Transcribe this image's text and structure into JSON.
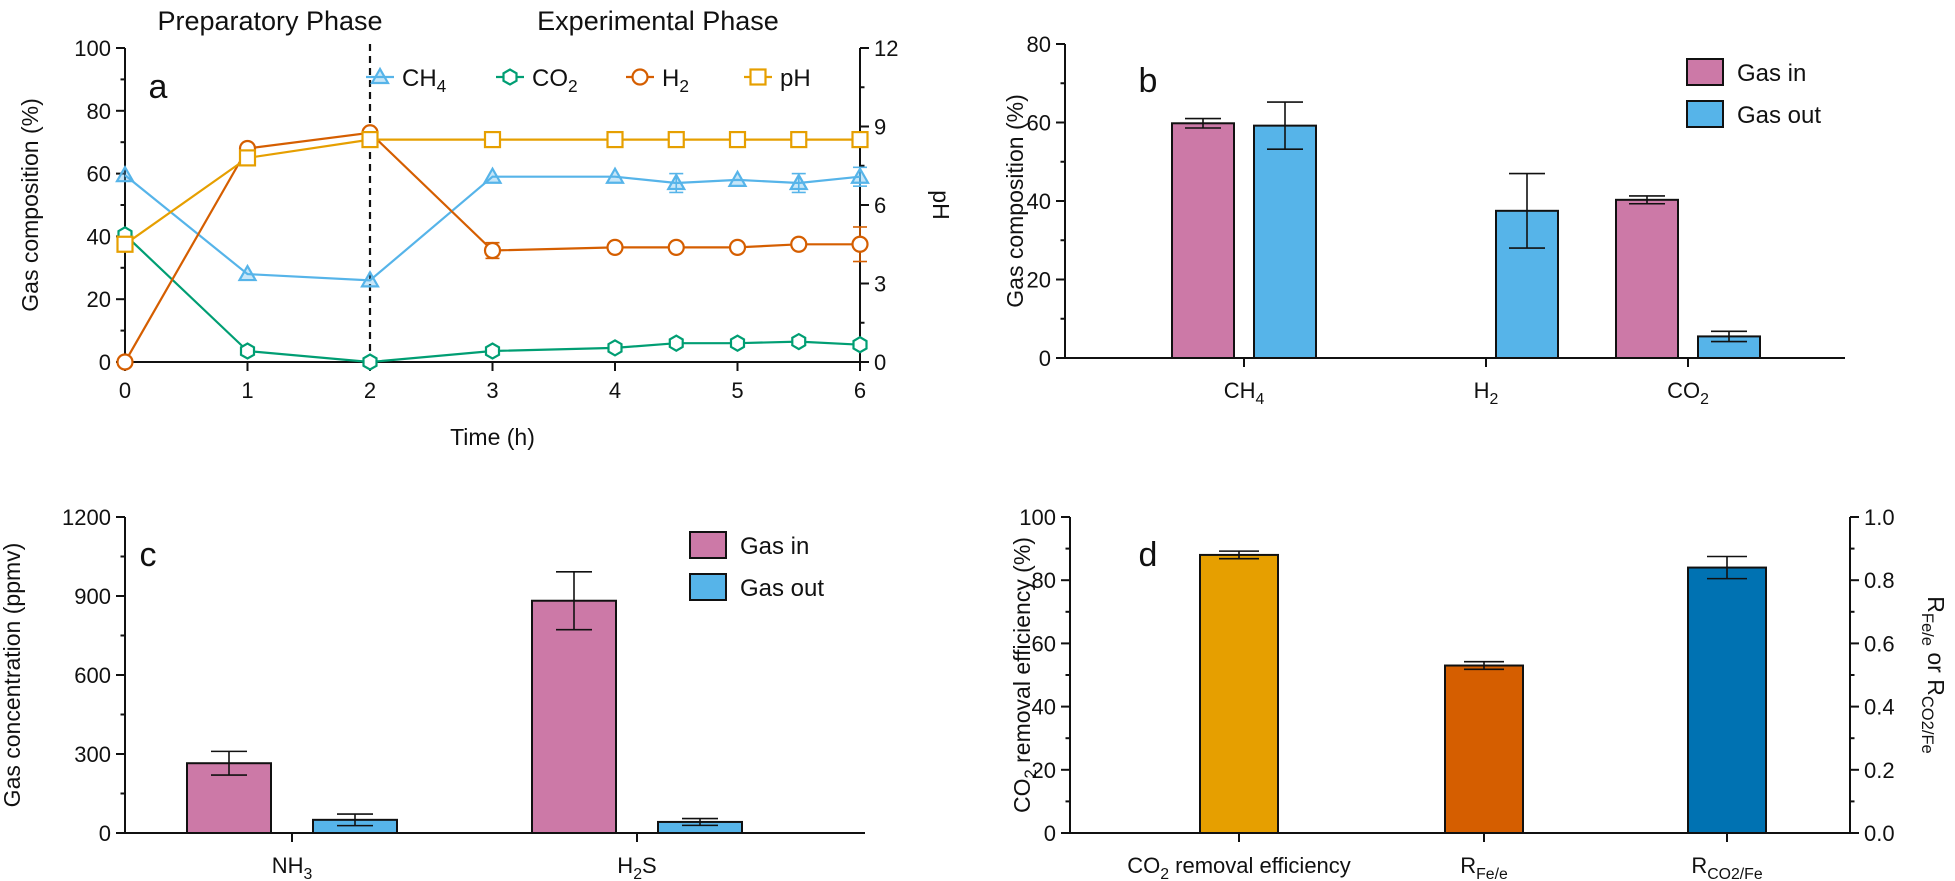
{
  "colors": {
    "ch4": "#56b4e9",
    "co2": "#009e73",
    "h2": "#d55e00",
    "ph": "#e69f00",
    "gas_in": "#cc79a7",
    "gas_out": "#56b4e9",
    "d_bar_1": "#e69f00",
    "d_bar_2": "#d55e00",
    "d_bar_3": "#0072b2",
    "dashed_divider": "#111111"
  },
  "chart_data": [
    {
      "panel": "a",
      "type": "line",
      "phase_labels": [
        "Preparatory Phase",
        "Experimental Phase"
      ],
      "phase_divider_x": 2,
      "xlabel": "Time (h)",
      "ylabel": "Gas composition (%)",
      "y2label": "pH",
      "xlim": [
        0,
        6
      ],
      "ylim": [
        0,
        100
      ],
      "y2lim": [
        0,
        12
      ],
      "x_ticks": [
        "0",
        "1",
        "2",
        "3",
        "4",
        "5",
        "6"
      ],
      "y_ticks": [
        "0",
        "20",
        "40",
        "60",
        "80",
        "100"
      ],
      "y2_ticks": [
        "0",
        "3",
        "6",
        "9",
        "12"
      ],
      "legend_placement": "top-right, horizontal",
      "series": [
        {
          "name": "CH",
          "sub": "4",
          "marker": "triangle",
          "axis": "left",
          "x": [
            0,
            1,
            2,
            3,
            4,
            4.5,
            5,
            5.5,
            6
          ],
          "y": [
            59.5,
            28,
            26,
            59,
            59,
            57,
            58,
            57,
            59
          ],
          "err": [
            0,
            0,
            0,
            0,
            0,
            3,
            0,
            3,
            3
          ]
        },
        {
          "name": "CO",
          "sub": "2",
          "marker": "hexagon",
          "axis": "left",
          "x": [
            0,
            1,
            2,
            3,
            4,
            4.5,
            5,
            5.5,
            6
          ],
          "y": [
            40.5,
            3.5,
            0,
            3.5,
            4.5,
            6,
            6,
            6.5,
            5.5
          ],
          "err": [
            0,
            0,
            0,
            0,
            0,
            0,
            0,
            0,
            0
          ]
        },
        {
          "name": "H",
          "sub": "2",
          "marker": "circle",
          "axis": "left",
          "x": [
            0,
            1,
            2,
            3,
            4,
            4.5,
            5,
            5.5,
            6
          ],
          "y": [
            0,
            68,
            73,
            35.5,
            36.5,
            36.5,
            36.5,
            37.5,
            37.5
          ],
          "err": [
            0,
            0,
            0,
            2.5,
            0,
            0,
            0,
            0,
            5.5
          ]
        },
        {
          "name": "pH",
          "sub": "",
          "marker": "square",
          "axis": "right",
          "x": [
            0,
            1,
            2,
            3,
            4,
            4.5,
            5,
            5.5,
            6
          ],
          "y": [
            4.5,
            7.8,
            8.5,
            8.5,
            8.5,
            8.5,
            8.5,
            8.5,
            8.5
          ],
          "err": [
            0,
            0,
            0,
            0,
            0,
            0,
            0,
            0,
            0
          ]
        }
      ]
    },
    {
      "panel": "b",
      "type": "bar",
      "ylabel": "Gas composition (%)",
      "ylim": [
        0,
        80
      ],
      "y_ticks": [
        "0",
        "20",
        "40",
        "60",
        "80"
      ],
      "categories": [
        {
          "main": "CH",
          "sub": "4"
        },
        {
          "main": "H",
          "sub": "2"
        },
        {
          "main": "CO",
          "sub": "2"
        }
      ],
      "legend_placement": "top-right",
      "series": [
        {
          "name": "Gas in",
          "values": [
            59.8,
            0,
            40.3
          ],
          "err": [
            1.2,
            0,
            1.0
          ]
        },
        {
          "name": "Gas out",
          "values": [
            59.2,
            37.5,
            5.5
          ],
          "err": [
            6,
            9.5,
            1.3
          ]
        }
      ]
    },
    {
      "panel": "c",
      "type": "bar",
      "ylabel": "Gas concentration (ppmv)",
      "ylim": [
        0,
        1200
      ],
      "y_ticks": [
        "0",
        "300",
        "600",
        "900",
        "1200"
      ],
      "categories": [
        {
          "main": "NH",
          "sub": "3",
          "tail": ""
        },
        {
          "main": "H",
          "sub": "2",
          "tail": "S"
        }
      ],
      "legend_placement": "top-right",
      "series": [
        {
          "name": "Gas in",
          "values": [
            265,
            882
          ],
          "err": [
            45,
            110
          ]
        },
        {
          "name": "Gas out",
          "values": [
            50,
            42
          ],
          "err": [
            22,
            13
          ]
        }
      ]
    },
    {
      "panel": "d",
      "type": "bar",
      "ylabel_main": "CO",
      "ylabel_sub": "2",
      "ylabel_tail": " removal efficiency (%)",
      "y2label_parts": [
        {
          "text": "R",
          "sub": false
        },
        {
          "text": "Fe/e",
          "sub": true
        },
        {
          "text": " or R",
          "sub": false
        },
        {
          "text": "CO2/Fe",
          "sub": true
        }
      ],
      "ylim": [
        0,
        100
      ],
      "y2lim": [
        0,
        1.0
      ],
      "y_ticks": [
        "0",
        "20",
        "40",
        "60",
        "80",
        "100"
      ],
      "y2_ticks": [
        "0.0",
        "0.2",
        "0.4",
        "0.6",
        "0.8",
        "1.0"
      ],
      "categories": [
        {
          "main": "CO",
          "sub": "2",
          "tail": " removal efficiency"
        },
        {
          "main": "R",
          "sub": "Fe/e",
          "tail": ""
        },
        {
          "main": "R",
          "sub": "CO2/Fe",
          "tail": ""
        }
      ],
      "values": [
        88,
        0.53,
        0.84
      ],
      "value_axis": [
        "left",
        "right",
        "right"
      ],
      "err": [
        1.2,
        0.012,
        0.035
      ]
    }
  ]
}
